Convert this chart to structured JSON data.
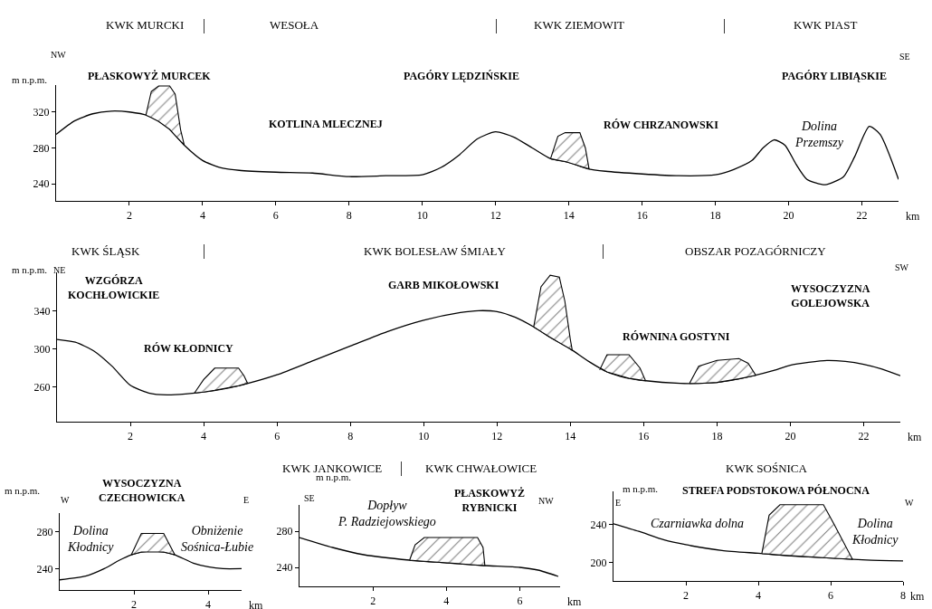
{
  "chart_data": [
    {
      "type": "line",
      "xlabel": "km",
      "ylabel": "m n.p.m.",
      "xlim": [
        0,
        23
      ],
      "ylim": [
        221,
        350
      ],
      "xticks": [
        2,
        4,
        6,
        8,
        10,
        12,
        14,
        16,
        18,
        20,
        22
      ],
      "yticks": [
        240,
        280,
        320
      ],
      "series": [
        {
          "color": "#000000",
          "x": [
            0,
            0.5,
            1,
            1.5,
            2,
            2.5,
            3,
            3.5,
            4,
            4.5,
            5,
            6,
            7,
            8,
            9,
            10,
            10.5,
            11,
            11.5,
            12,
            12.5,
            13,
            13.5,
            14,
            14.5,
            15,
            16,
            17,
            18,
            18.5,
            19,
            19.3,
            19.6,
            19.9,
            20.2,
            20.5,
            21,
            21.5,
            21.8,
            22.2,
            22.5,
            23
          ],
          "values": [
            295,
            310,
            318,
            321,
            320,
            316,
            305,
            283,
            266,
            258,
            255,
            253,
            252,
            248,
            249,
            250,
            258,
            272,
            290,
            298,
            292,
            280,
            268,
            264,
            257,
            254,
            251,
            249,
            250,
            256,
            266,
            280,
            289,
            283,
            262,
            245,
            239,
            248,
            270,
            304,
            295,
            245
          ]
        },
        {
          "type": "area",
          "color": "#000000",
          "x": [
            2.45,
            2.6,
            2.8,
            3.1,
            3.25,
            3.4,
            3.5
          ],
          "values": [
            316,
            343,
            349,
            349,
            340,
            300,
            283
          ]
        },
        {
          "type": "area",
          "color": "#000000",
          "x": [
            13.5,
            13.7,
            13.9,
            14.3,
            14.45,
            14.55
          ],
          "values": [
            268,
            293,
            297,
            297,
            280,
            257
          ]
        }
      ],
      "annotations": [
        "KWK MURCKI",
        "|",
        "WESOŁA",
        "|",
        "KWK ZIEMOWIT",
        "|",
        "KWK PIAST",
        "NW",
        "SE",
        "PŁASKOWYŻ MURCEK",
        "PAGÓRY LĘDZIŃSKIE",
        "PAGÓRY LIBIĄSKIE",
        "KOTLINA MLECZNEJ",
        "RÓW CHRZANOWSKI",
        "Dolina\nPrzemszy"
      ]
    },
    {
      "type": "line",
      "xlabel": "km",
      "ylabel": "m n.p.m.",
      "xlim": [
        0,
        23
      ],
      "ylim": [
        224,
        380
      ],
      "xticks": [
        2,
        4,
        6,
        8,
        10,
        12,
        14,
        16,
        18,
        20,
        22
      ],
      "yticks": [
        260,
        300,
        340
      ],
      "series": [
        {
          "color": "#000000",
          "x": [
            0,
            0.5,
            1,
            1.5,
            2,
            2.5,
            3,
            3.5,
            4,
            4.5,
            5,
            6,
            7,
            8,
            9,
            10,
            11,
            11.5,
            12,
            12.5,
            13,
            13.5,
            14,
            14.5,
            15,
            15.5,
            16,
            17,
            17.5,
            18,
            18.5,
            19,
            19.5,
            20,
            20.5,
            21,
            21.5,
            22,
            22.5,
            23
          ],
          "values": [
            310,
            307,
            298,
            282,
            262,
            254,
            252,
            253,
            255,
            258,
            262,
            273,
            288,
            303,
            318,
            330,
            338,
            340,
            339,
            333,
            323,
            311,
            300,
            287,
            276,
            270,
            267,
            264,
            264,
            265,
            268,
            272,
            277,
            283,
            286,
            288,
            287,
            284,
            279,
            272
          ]
        },
        {
          "type": "area",
          "color": "#000000",
          "x": [
            3.75,
            4.0,
            4.3,
            4.95,
            5.1,
            5.2
          ],
          "values": [
            254,
            268,
            280,
            280,
            272,
            264
          ]
        },
        {
          "type": "area",
          "color": "#000000",
          "x": [
            13.0,
            13.2,
            13.45,
            13.7,
            13.85,
            14.0,
            14.05
          ],
          "values": [
            323,
            365,
            377,
            375,
            350,
            310,
            299
          ]
        },
        {
          "type": "area",
          "color": "#000000",
          "x": [
            14.8,
            15.0,
            15.6,
            15.9,
            16.05
          ],
          "values": [
            278,
            294,
            294,
            280,
            267
          ]
        },
        {
          "type": "area",
          "color": "#000000",
          "x": [
            17.25,
            17.5,
            18.0,
            18.6,
            18.85,
            19.05
          ],
          "values": [
            264,
            282,
            288,
            290,
            285,
            273
          ]
        }
      ],
      "annotations": [
        "KWK ŚLĄSK",
        "|",
        "KWK BOLESŁAW ŚMIAŁY",
        "|",
        "OBSZAR POZAGÓRNICZY",
        "NE",
        "SW",
        "WZGÓRZA\nKOCHŁOWICKIE",
        "GARB MIKOŁOWSKI",
        "WYSOCZYZNA\nGOLEJOWSKA",
        "RÓW KŁODNICY",
        "RÓWNINA GOSTYNI"
      ]
    },
    {
      "type": "line",
      "xlabel": "km",
      "ylabel": "m n.p.m.",
      "xlim": [
        0,
        4.9
      ],
      "ylim": [
        217,
        300
      ],
      "xticks": [
        2,
        4
      ],
      "yticks": [
        240,
        280
      ],
      "series": [
        {
          "color": "#000000",
          "x": [
            0,
            0.7,
            1.2,
            1.6,
            1.93,
            2.2,
            2.5,
            2.8,
            3.1,
            3.6,
            4.0,
            4.4,
            4.9
          ],
          "values": [
            228,
            232,
            240,
            249,
            255,
            258,
            259,
            258,
            255,
            246,
            242,
            240,
            240
          ]
        },
        {
          "type": "area",
          "color": "#000000",
          "x": [
            1.93,
            2.2,
            2.8,
            3.1
          ],
          "values": [
            255,
            278,
            278,
            255
          ]
        }
      ],
      "annotations": [
        "W",
        "E",
        "WYSOCZYZNA\nCZECHOWICKA",
        "Dolina\nKłodnicy",
        "Obniżenie\nSośnica-Łubie"
      ]
    },
    {
      "type": "line",
      "xlabel": "km",
      "ylabel": "m n.p.m.",
      "xlim": [
        0,
        7.1
      ],
      "ylim": [
        219,
        309
      ],
      "xticks": [
        2,
        4,
        6
      ],
      "yticks": [
        240,
        280
      ],
      "series": [
        {
          "color": "#000000",
          "x": [
            0,
            0.9,
            1.75,
            3.0,
            4.0,
            5.05,
            6.0,
            6.5,
            7.05
          ],
          "values": [
            273,
            262,
            254,
            248,
            245,
            242,
            240,
            237,
            230
          ]
        },
        {
          "type": "area",
          "color": "#000000",
          "x": [
            3.0,
            3.15,
            3.4,
            4.85,
            5.0,
            5.05
          ],
          "values": [
            248,
            265,
            273,
            273,
            262,
            242
          ]
        }
      ],
      "annotations": [
        "KWK JANKOWICE",
        "|",
        "KWK CHWAŁOWICE",
        "SE",
        "NW",
        "PŁASKOWYŻ\nRYBNICKI",
        "Dopływ\nP. Radziejowskiego"
      ]
    },
    {
      "type": "line",
      "xlabel": "km",
      "ylabel": "m n.p.m.",
      "xlim": [
        0,
        8
      ],
      "ylim": [
        181,
        275
      ],
      "xticks": [
        2,
        4,
        6,
        8
      ],
      "yticks": [
        200,
        240
      ],
      "series": [
        {
          "color": "#000000",
          "x": [
            0,
            0.7,
            1.4,
            2,
            3,
            4,
            5,
            6,
            7,
            8
          ],
          "values": [
            241,
            233,
            224,
            219,
            213,
            210,
            207,
            205,
            203,
            202
          ]
        },
        {
          "type": "area",
          "color": "#000000",
          "x": [
            4.1,
            4.3,
            4.6,
            5.8,
            6.1,
            6.6
          ],
          "values": [
            210,
            250,
            261,
            261,
            240,
            204
          ]
        }
      ],
      "annotations": [
        "KWK SOŚNICA",
        "E",
        "W",
        "STREFA PODSTOKOWA PÓŁNOCNA",
        "Czarniawka dolna",
        "Dolina\nKłodnicy"
      ]
    }
  ]
}
